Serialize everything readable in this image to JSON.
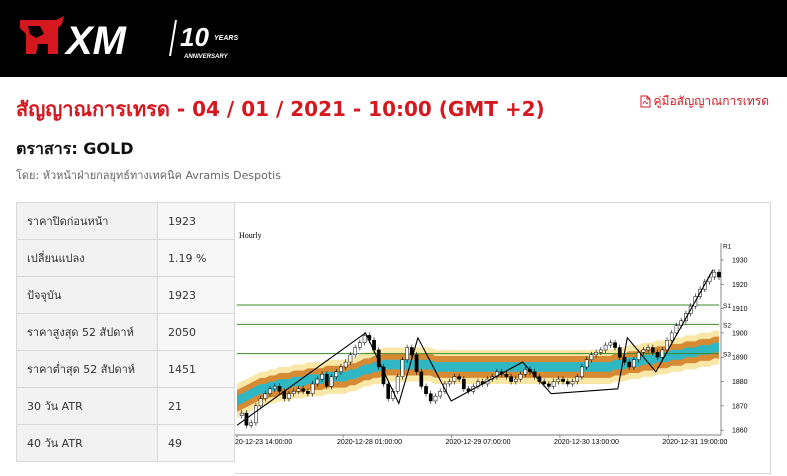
{
  "brand": {
    "logo_text": "XM",
    "anniversary_number": "10",
    "anniversary_years": "YEARS",
    "anniversary_label": "ANNIVERSARY"
  },
  "title": "สัญญาณการเทรด - 04 / 01 / 2021 - 10:00 (GMT +2)",
  "guide_link": "คู่มือสัญญาณการเทรด",
  "instrument": "ตราสาร: GOLD",
  "byline": "โดย: หัวหน้าฝ่ายกลยุทธ์ทางเทคนิค Avramis Despotis",
  "stats": [
    {
      "label": "ราคาปิดก่อนหน้า",
      "value": "1923"
    },
    {
      "label": "เปลี่ยนแปลง",
      "value": "1.19 %"
    },
    {
      "label": "ปัจจุบัน",
      "value": "1923"
    },
    {
      "label": "ราคาสูงสุด 52 สัปดาห์",
      "value": "2050"
    },
    {
      "label": "ราคาต่ำสุด 52 สัปดาห์",
      "value": "1451"
    },
    {
      "label": "30 วัน ATR",
      "value": "21"
    },
    {
      "label": "40 วัน ATR",
      "value": "49"
    }
  ],
  "chart_data": {
    "type": "line",
    "title": "Hourly",
    "y_ticks": [
      1860,
      1870,
      1880,
      1890,
      1900,
      1910,
      1920,
      1930
    ],
    "ylim": [
      1858,
      1937
    ],
    "x_ticks": [
      "20-12-23 14:00:00",
      "2020-12-28 01:00:00",
      "2020-12-29 07:00:00",
      "2020-12-30 13:00:00",
      "2020-12-31 19:00:00"
    ],
    "levels": [
      {
        "label": "R1",
        "value": 1936
      },
      {
        "label": "S1",
        "value": 1911.5
      },
      {
        "label": "S2",
        "value": 1903.5
      },
      {
        "label": "S3",
        "value": 1891.5
      }
    ],
    "price": [
      1866,
      1867,
      1862,
      1863,
      1870,
      1873,
      1875,
      1877,
      1878,
      1876,
      1873,
      1875,
      1876,
      1877,
      1876,
      1875,
      1879,
      1881,
      1883,
      1878,
      1882,
      1884,
      1886,
      1888,
      1891,
      1894,
      1896,
      1899,
      1897,
      1893,
      1886,
      1879,
      1873,
      1876,
      1882,
      1889,
      1894,
      1891,
      1884,
      1878,
      1875,
      1872,
      1874,
      1876,
      1879,
      1880,
      1882,
      1881,
      1877,
      1876,
      1878,
      1880,
      1879,
      1881,
      1882,
      1884,
      1883,
      1882,
      1880,
      1881,
      1883,
      1885,
      1884,
      1882,
      1880,
      1879,
      1878,
      1880,
      1881,
      1880,
      1879,
      1880,
      1882,
      1886,
      1889,
      1891,
      1892,
      1893,
      1895,
      1896,
      1894,
      1890,
      1888,
      1886,
      1889,
      1892,
      1893,
      1894,
      1892,
      1890,
      1893,
      1897,
      1900,
      1903,
      1905,
      1908,
      1911,
      1915,
      1918,
      1921,
      1923,
      1925,
      1923
    ],
    "zigzag": [
      [
        0,
        1862
      ],
      [
        27,
        1900
      ],
      [
        34,
        1871
      ],
      [
        38,
        1898
      ],
      [
        45,
        1872
      ],
      [
        60,
        1888
      ],
      [
        66,
        1875
      ],
      [
        80,
        1877
      ],
      [
        82,
        1898
      ],
      [
        88,
        1884
      ],
      [
        100,
        1926
      ]
    ],
    "band_mid": [
      1872,
      1873,
      1874,
      1875,
      1876,
      1877,
      1877,
      1878,
      1878,
      1879,
      1879,
      1879,
      1880,
      1880,
      1880,
      1881,
      1881,
      1881,
      1881,
      1882,
      1882,
      1882,
      1882,
      1882,
      1883,
      1883,
      1884,
      1885,
      1885,
      1886,
      1886,
      1887,
      1887,
      1887,
      1887,
      1887,
      1887,
      1887,
      1887,
      1887,
      1887,
      1887,
      1886,
      1886,
      1886,
      1886,
      1886,
      1886,
      1886,
      1886,
      1886,
      1886,
      1886,
      1886,
      1886,
      1886,
      1886,
      1886,
      1886,
      1886,
      1886,
      1886,
      1886,
      1886,
      1886,
      1886,
      1886,
      1886,
      1886,
      1886,
      1886,
      1886,
      1886,
      1886,
      1886,
      1886,
      1886,
      1886,
      1886,
      1886,
      1887,
      1887,
      1887,
      1888,
      1888,
      1888,
      1889,
      1889,
      1889,
      1890,
      1890,
      1890,
      1891,
      1891,
      1891,
      1892,
      1892,
      1892,
      1893,
      1893,
      1893,
      1894,
      1894
    ]
  }
}
